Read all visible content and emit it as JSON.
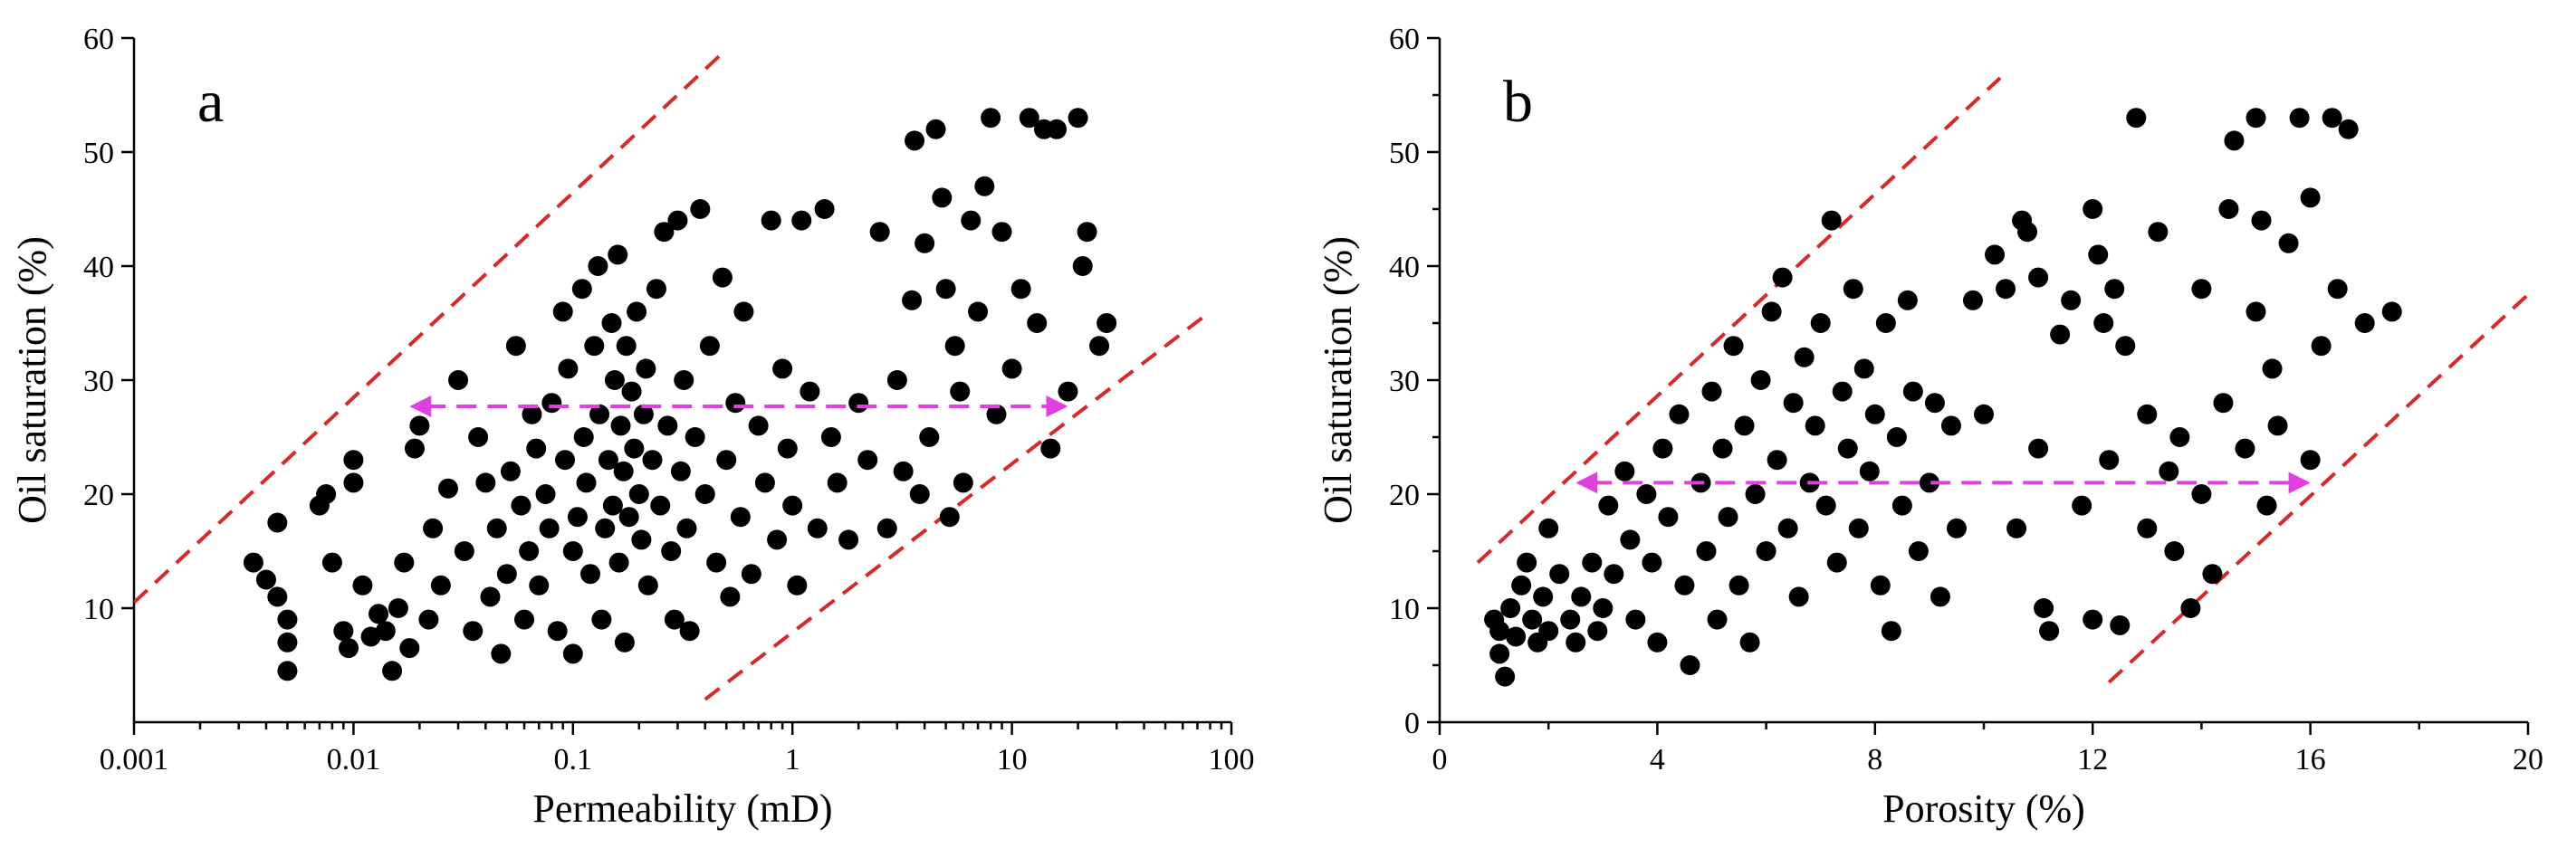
{
  "chart_data": [
    {
      "type": "scatter",
      "panel_label": "a",
      "xlabel": "Permeability (mD)",
      "ylabel": "Oil saturation (%)",
      "xscale": "log",
      "xlim": [
        0.001,
        100
      ],
      "ylim": [
        0,
        60
      ],
      "xticks": [
        0.001,
        0.01,
        0.1,
        1,
        10,
        100
      ],
      "xtick_labels": [
        "0.001",
        "0.01",
        "0.1",
        "1",
        "10",
        "100"
      ],
      "yticks": [
        10,
        20,
        30,
        40,
        50,
        60
      ],
      "ytick_labels": [
        "10",
        "20",
        "30",
        "40",
        "50",
        "60"
      ],
      "grid": false,
      "upper_bound": [
        [
          0.001,
          10.5
        ],
        [
          0.5,
          59
        ]
      ],
      "lower_bound": [
        [
          0.4,
          2
        ],
        [
          80,
          36
        ]
      ],
      "range_arrow": {
        "y": 27.7,
        "x_from": 0.018,
        "x_to": 18
      },
      "points": [
        [
          0.0035,
          14
        ],
        [
          0.004,
          12.5
        ],
        [
          0.0045,
          17.5
        ],
        [
          0.0045,
          11
        ],
        [
          0.005,
          9
        ],
        [
          0.005,
          7
        ],
        [
          0.005,
          4.5
        ],
        [
          0.007,
          19
        ],
        [
          0.0075,
          20
        ],
        [
          0.008,
          14
        ],
        [
          0.009,
          8
        ],
        [
          0.0095,
          6.5
        ],
        [
          0.01,
          23
        ],
        [
          0.01,
          21
        ],
        [
          0.011,
          12
        ],
        [
          0.012,
          7.5
        ],
        [
          0.013,
          9.5
        ],
        [
          0.014,
          8
        ],
        [
          0.015,
          4.5
        ],
        [
          0.016,
          10
        ],
        [
          0.017,
          14
        ],
        [
          0.018,
          6.5
        ],
        [
          0.019,
          24
        ],
        [
          0.02,
          26
        ],
        [
          0.022,
          9
        ],
        [
          0.023,
          17
        ],
        [
          0.025,
          12
        ],
        [
          0.027,
          20.5
        ],
        [
          0.03,
          30
        ],
        [
          0.032,
          15
        ],
        [
          0.035,
          8
        ],
        [
          0.037,
          25
        ],
        [
          0.04,
          21
        ],
        [
          0.042,
          11
        ],
        [
          0.045,
          17
        ],
        [
          0.047,
          6
        ],
        [
          0.05,
          13
        ],
        [
          0.052,
          22
        ],
        [
          0.055,
          33
        ],
        [
          0.058,
          19
        ],
        [
          0.06,
          9
        ],
        [
          0.063,
          15
        ],
        [
          0.065,
          27
        ],
        [
          0.068,
          24
        ],
        [
          0.07,
          12
        ],
        [
          0.075,
          20
        ],
        [
          0.078,
          17
        ],
        [
          0.08,
          28
        ],
        [
          0.085,
          8
        ],
        [
          0.09,
          36
        ],
        [
          0.092,
          23
        ],
        [
          0.095,
          31
        ],
        [
          0.1,
          15
        ],
        [
          0.1,
          6
        ],
        [
          0.105,
          18
        ],
        [
          0.11,
          38
        ],
        [
          0.112,
          25
        ],
        [
          0.115,
          21
        ],
        [
          0.12,
          13
        ],
        [
          0.125,
          33
        ],
        [
          0.13,
          40
        ],
        [
          0.132,
          27
        ],
        [
          0.135,
          9
        ],
        [
          0.14,
          17
        ],
        [
          0.145,
          23
        ],
        [
          0.15,
          35
        ],
        [
          0.152,
          19
        ],
        [
          0.155,
          30
        ],
        [
          0.16,
          41
        ],
        [
          0.162,
          14
        ],
        [
          0.165,
          26
        ],
        [
          0.17,
          22
        ],
        [
          0.172,
          7
        ],
        [
          0.175,
          33
        ],
        [
          0.18,
          18
        ],
        [
          0.185,
          29
        ],
        [
          0.19,
          24
        ],
        [
          0.195,
          36
        ],
        [
          0.2,
          20
        ],
        [
          0.205,
          16
        ],
        [
          0.21,
          27
        ],
        [
          0.215,
          31
        ],
        [
          0.22,
          12
        ],
        [
          0.23,
          23
        ],
        [
          0.24,
          38
        ],
        [
          0.25,
          19
        ],
        [
          0.26,
          43
        ],
        [
          0.27,
          26
        ],
        [
          0.28,
          15
        ],
        [
          0.29,
          9
        ],
        [
          0.3,
          44
        ],
        [
          0.31,
          22
        ],
        [
          0.32,
          30
        ],
        [
          0.33,
          17
        ],
        [
          0.34,
          8
        ],
        [
          0.36,
          25
        ],
        [
          0.38,
          45
        ],
        [
          0.4,
          20
        ],
        [
          0.42,
          33
        ],
        [
          0.45,
          14
        ],
        [
          0.48,
          39
        ],
        [
          0.5,
          23
        ],
        [
          0.52,
          11
        ],
        [
          0.55,
          28
        ],
        [
          0.58,
          18
        ],
        [
          0.6,
          36
        ],
        [
          0.65,
          13
        ],
        [
          0.7,
          26
        ],
        [
          0.75,
          21
        ],
        [
          0.8,
          44
        ],
        [
          0.85,
          16
        ],
        [
          0.9,
          31
        ],
        [
          0.95,
          24
        ],
        [
          1,
          19
        ],
        [
          1.05,
          12
        ],
        [
          1.1,
          44
        ],
        [
          1.2,
          29
        ],
        [
          1.3,
          17
        ],
        [
          1.4,
          45
        ],
        [
          1.5,
          25
        ],
        [
          1.6,
          21
        ],
        [
          1.8,
          16
        ],
        [
          2,
          28
        ],
        [
          2.2,
          23
        ],
        [
          2.5,
          43
        ],
        [
          2.7,
          17
        ],
        [
          3,
          30
        ],
        [
          3.2,
          22
        ],
        [
          3.5,
          37
        ],
        [
          3.6,
          51
        ],
        [
          3.8,
          20
        ],
        [
          4,
          42
        ],
        [
          4.2,
          25
        ],
        [
          4.5,
          52
        ],
        [
          4.8,
          46
        ],
        [
          5,
          38
        ],
        [
          5.2,
          18
        ],
        [
          5.5,
          33
        ],
        [
          5.8,
          29
        ],
        [
          6,
          21
        ],
        [
          6.5,
          44
        ],
        [
          7,
          36
        ],
        [
          7.5,
          47
        ],
        [
          8,
          53
        ],
        [
          8.5,
          27
        ],
        [
          9,
          43
        ],
        [
          10,
          31
        ],
        [
          11,
          38
        ],
        [
          12,
          53
        ],
        [
          13,
          35
        ],
        [
          14,
          52
        ],
        [
          15,
          24
        ],
        [
          16,
          52
        ],
        [
          18,
          29
        ],
        [
          20,
          53
        ],
        [
          21,
          40
        ],
        [
          22,
          43
        ],
        [
          25,
          33
        ],
        [
          27,
          35
        ]
      ]
    },
    {
      "type": "scatter",
      "panel_label": "b",
      "xlabel": "Porosity (%)",
      "ylabel": "Oil saturation (%)",
      "xscale": "linear",
      "xlim": [
        0,
        20
      ],
      "ylim": [
        0,
        60
      ],
      "xticks": [
        0,
        4,
        8,
        12,
        16,
        20
      ],
      "xtick_labels": [
        "0",
        "4",
        "8",
        "12",
        "16",
        "20"
      ],
      "yticks": [
        0,
        10,
        20,
        30,
        40,
        50,
        60
      ],
      "ytick_labels": [
        "0",
        "10",
        "20",
        "30",
        "40",
        "50",
        "60"
      ],
      "grid": false,
      "upper_bound": [
        [
          0.7,
          14
        ],
        [
          10.3,
          56.5
        ]
      ],
      "lower_bound": [
        [
          12.3,
          3.5
        ],
        [
          20,
          37.5
        ]
      ],
      "range_arrow": {
        "y": 21,
        "x_from": 2.5,
        "x_to": 16
      },
      "points": [
        [
          1,
          9
        ],
        [
          1.1,
          8
        ],
        [
          1.1,
          6
        ],
        [
          1.2,
          4
        ],
        [
          1.3,
          10
        ],
        [
          1.4,
          7.5
        ],
        [
          1.5,
          12
        ],
        [
          1.6,
          14
        ],
        [
          1.7,
          9
        ],
        [
          1.8,
          7
        ],
        [
          1.9,
          11
        ],
        [
          2,
          17
        ],
        [
          2,
          8
        ],
        [
          2.2,
          13
        ],
        [
          2.4,
          9
        ],
        [
          2.5,
          7
        ],
        [
          2.6,
          11
        ],
        [
          2.8,
          14
        ],
        [
          2.9,
          8
        ],
        [
          3,
          10
        ],
        [
          3.1,
          19
        ],
        [
          3.2,
          13
        ],
        [
          3.4,
          22
        ],
        [
          3.5,
          16
        ],
        [
          3.6,
          9
        ],
        [
          3.8,
          20
        ],
        [
          3.9,
          14
        ],
        [
          4,
          7
        ],
        [
          4.1,
          24
        ],
        [
          4.2,
          18
        ],
        [
          4.4,
          27
        ],
        [
          4.5,
          12
        ],
        [
          4.6,
          5
        ],
        [
          4.8,
          21
        ],
        [
          4.9,
          15
        ],
        [
          5,
          29
        ],
        [
          5.1,
          9
        ],
        [
          5.2,
          24
        ],
        [
          5.3,
          18
        ],
        [
          5.4,
          33
        ],
        [
          5.5,
          12
        ],
        [
          5.6,
          26
        ],
        [
          5.7,
          7
        ],
        [
          5.8,
          20
        ],
        [
          5.9,
          30
        ],
        [
          6,
          15
        ],
        [
          6.1,
          36
        ],
        [
          6.2,
          23
        ],
        [
          6.3,
          39
        ],
        [
          6.4,
          17
        ],
        [
          6.5,
          28
        ],
        [
          6.6,
          11
        ],
        [
          6.7,
          32
        ],
        [
          6.8,
          21
        ],
        [
          6.9,
          26
        ],
        [
          7,
          35
        ],
        [
          7.1,
          19
        ],
        [
          7.2,
          44
        ],
        [
          7.3,
          14
        ],
        [
          7.4,
          29
        ],
        [
          7.5,
          24
        ],
        [
          7.6,
          38
        ],
        [
          7.7,
          17
        ],
        [
          7.8,
          31
        ],
        [
          7.9,
          22
        ],
        [
          8,
          27
        ],
        [
          8.1,
          12
        ],
        [
          8.2,
          35
        ],
        [
          8.3,
          8
        ],
        [
          8.4,
          25
        ],
        [
          8.5,
          19
        ],
        [
          8.6,
          37
        ],
        [
          8.7,
          29
        ],
        [
          8.8,
          15
        ],
        [
          9,
          21
        ],
        [
          9.1,
          28
        ],
        [
          9.2,
          11
        ],
        [
          9.4,
          26
        ],
        [
          9.5,
          17
        ],
        [
          9.8,
          37
        ],
        [
          10,
          27
        ],
        [
          10.2,
          41
        ],
        [
          10.4,
          38
        ],
        [
          10.6,
          17
        ],
        [
          10.7,
          44
        ],
        [
          10.8,
          43
        ],
        [
          11,
          39
        ],
        [
          11,
          24
        ],
        [
          11.1,
          10
        ],
        [
          11.2,
          8
        ],
        [
          11.4,
          34
        ],
        [
          11.6,
          37
        ],
        [
          11.8,
          19
        ],
        [
          12,
          45
        ],
        [
          12,
          9
        ],
        [
          12.1,
          41
        ],
        [
          12.2,
          35
        ],
        [
          12.3,
          23
        ],
        [
          12.4,
          38
        ],
        [
          12.5,
          8.5
        ],
        [
          12.6,
          33
        ],
        [
          12.8,
          53
        ],
        [
          13,
          27
        ],
        [
          13,
          17
        ],
        [
          13.2,
          43
        ],
        [
          13.4,
          22
        ],
        [
          13.5,
          15
        ],
        [
          13.6,
          25
        ],
        [
          13.8,
          10
        ],
        [
          14,
          38
        ],
        [
          14,
          20
        ],
        [
          14.2,
          13
        ],
        [
          14.4,
          28
        ],
        [
          14.5,
          45
        ],
        [
          14.6,
          51
        ],
        [
          14.8,
          24
        ],
        [
          15,
          53
        ],
        [
          15,
          36
        ],
        [
          15.1,
          44
        ],
        [
          15.2,
          19
        ],
        [
          15.3,
          31
        ],
        [
          15.4,
          26
        ],
        [
          15.6,
          42
        ],
        [
          15.8,
          53
        ],
        [
          16,
          46
        ],
        [
          16,
          23
        ],
        [
          16.2,
          33
        ],
        [
          16.4,
          53
        ],
        [
          16.5,
          38
        ],
        [
          16.7,
          52
        ],
        [
          17,
          35
        ],
        [
          17.5,
          36
        ]
      ]
    }
  ]
}
